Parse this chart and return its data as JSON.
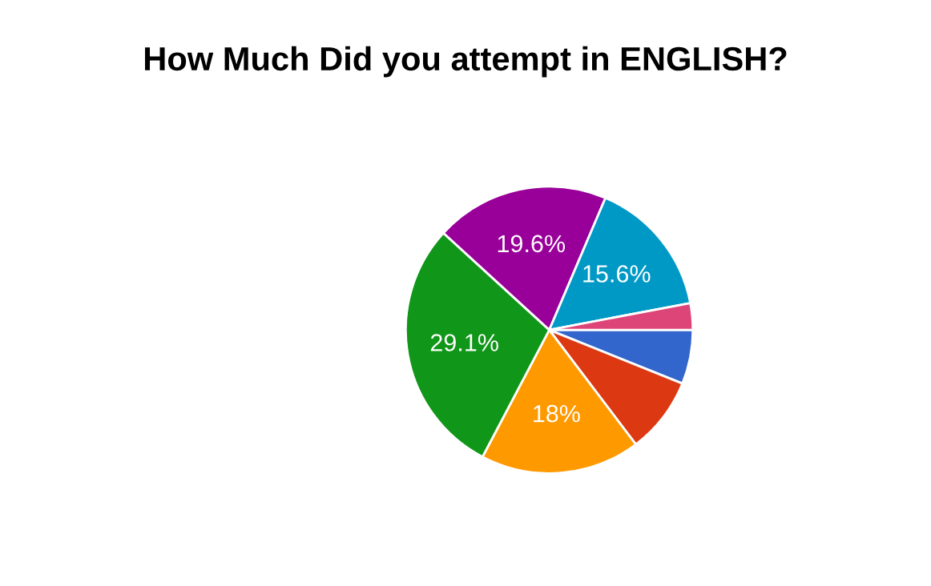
{
  "chart_data": {
    "type": "pie",
    "title": "How Much Did you attempt in ENGLISH?",
    "categories": [
      null,
      null,
      null,
      null,
      null,
      null,
      null
    ],
    "values": [
      6.1,
      8.6,
      18,
      29.1,
      19.6,
      15.6,
      3.0
    ],
    "colors": [
      "#3366cc",
      "#dc3912",
      "#ff9900",
      "#109618",
      "#990099",
      "#0099c6",
      "#dd4477"
    ],
    "value_labels": [
      null,
      null,
      "18%",
      "29.1%",
      "19.6%",
      "15.6%",
      null
    ]
  }
}
